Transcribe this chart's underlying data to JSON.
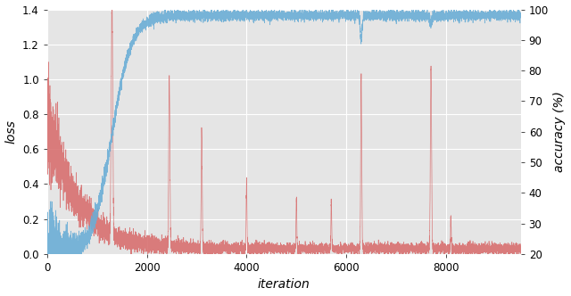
{
  "title": "",
  "xlabel": "iteration",
  "ylabel_left": "loss",
  "ylabel_right": "accuracy (%)",
  "xlim": [
    0,
    9500
  ],
  "ylim_left": [
    0.0,
    1.4
  ],
  "ylim_right": [
    20,
    100
  ],
  "yticks_left": [
    0.0,
    0.2,
    0.4,
    0.6,
    0.8,
    1.0,
    1.2,
    1.4
  ],
  "yticks_right": [
    20,
    30,
    40,
    50,
    60,
    70,
    80,
    90,
    100
  ],
  "xticks": [
    0,
    2000,
    4000,
    6000,
    8000
  ],
  "n_points": 9500,
  "loss_color": "#d87070",
  "acc_color": "#6baed6",
  "bg_color": "#e5e5e5",
  "fig_color": "#ffffff",
  "linewidth": 0.5,
  "seed": 42
}
